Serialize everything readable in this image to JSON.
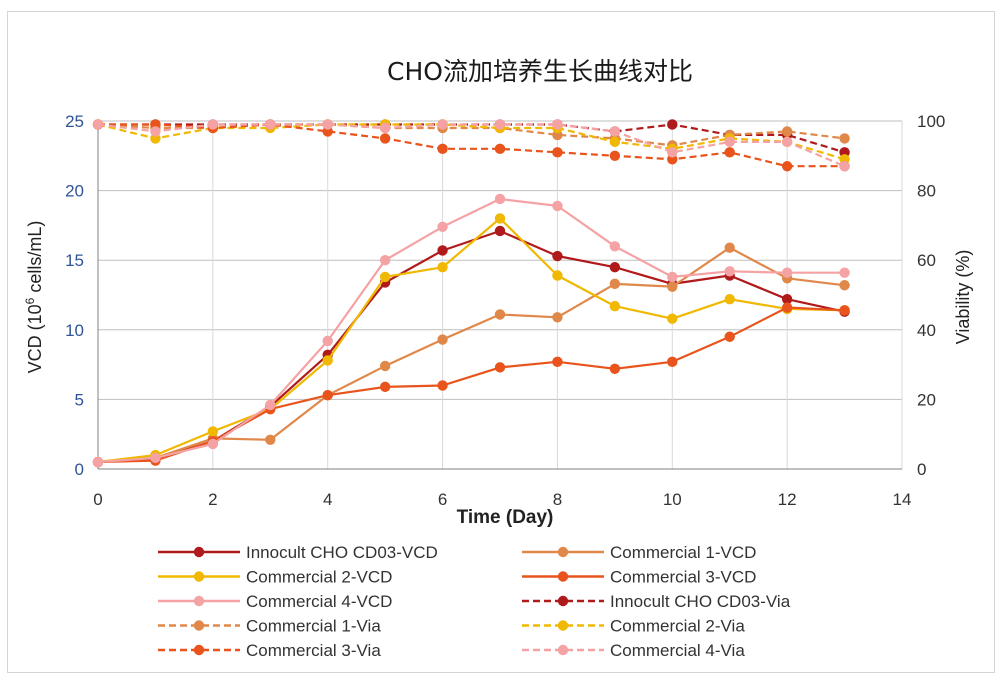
{
  "chart_data": {
    "type": "line",
    "title": "CHO流加培养生长曲线对比",
    "xlabel": "Time (Day)",
    "ylabel_left": "VCD (10⁶ cells/mL)",
    "ylabel_right": "Viability (%)",
    "xlim": [
      0,
      14
    ],
    "ylim_left": [
      0,
      25
    ],
    "ylim_right": [
      0,
      100
    ],
    "x_ticks": [
      "0",
      "2",
      "4",
      "6",
      "8",
      "10",
      "12",
      "14"
    ],
    "y_left_ticks": [
      "0",
      "5",
      "10",
      "15",
      "20",
      "25"
    ],
    "y_right_ticks": [
      "0",
      "20",
      "40",
      "60",
      "80",
      "100"
    ],
    "grid": true,
    "legend_position": "bottom",
    "x": [
      0,
      1,
      2,
      3,
      4,
      5,
      6,
      7,
      8,
      9,
      10,
      11,
      12,
      13
    ],
    "series": [
      {
        "name": "Innocult CHO CD03-VCD",
        "axis": "left",
        "style": "solid",
        "color": "#b01a1a",
        "values": [
          0.5,
          0.7,
          2.0,
          4.5,
          8.2,
          13.4,
          15.7,
          17.1,
          15.3,
          14.5,
          13.3,
          13.9,
          12.2,
          11.3
        ]
      },
      {
        "name": "Commercial 1-VCD",
        "axis": "left",
        "style": "solid",
        "color": "#e0884a",
        "values": [
          0.5,
          0.8,
          2.2,
          2.1,
          5.3,
          7.4,
          9.3,
          11.1,
          10.9,
          13.3,
          13.1,
          15.9,
          13.7,
          13.2
        ]
      },
      {
        "name": "Commercial 2-VCD",
        "axis": "left",
        "style": "solid",
        "color": "#f0b800",
        "values": [
          0.5,
          1.0,
          2.7,
          4.3,
          7.8,
          13.8,
          14.5,
          18.0,
          13.9,
          11.7,
          10.8,
          12.2,
          11.5,
          11.4
        ]
      },
      {
        "name": "Commercial 3-VCD",
        "axis": "left",
        "style": "solid",
        "color": "#e8541c",
        "values": [
          0.5,
          0.6,
          2.0,
          4.3,
          5.3,
          5.9,
          6.0,
          7.3,
          7.7,
          7.2,
          7.7,
          9.5,
          11.6,
          11.4
        ]
      },
      {
        "name": "Commercial 4-VCD",
        "axis": "left",
        "style": "solid",
        "color": "#f5a2a4",
        "values": [
          0.5,
          0.8,
          1.8,
          4.6,
          9.2,
          15.0,
          17.4,
          19.4,
          18.9,
          16.0,
          13.8,
          14.2,
          14.1,
          14.1
        ]
      },
      {
        "name": "Innocult CHO CD03-Via",
        "axis": "right",
        "style": "dashed",
        "color": "#b01a1a",
        "values": [
          99,
          99,
          99,
          99,
          99,
          99,
          99,
          99,
          99,
          97,
          99,
          96,
          96,
          91
        ]
      },
      {
        "name": "Commercial 1-Via",
        "axis": "right",
        "style": "dashed",
        "color": "#e0884a",
        "values": [
          99,
          98,
          98,
          99,
          99,
          98,
          98,
          98,
          96,
          95,
          93,
          96,
          97,
          95
        ]
      },
      {
        "name": "Commercial 2-Via",
        "axis": "right",
        "style": "dashed",
        "color": "#f0b800",
        "values": [
          99,
          95,
          98,
          98,
          99,
          99,
          99,
          98,
          98,
          94,
          92,
          95,
          94,
          89
        ]
      },
      {
        "name": "Commercial 3-Via",
        "axis": "right",
        "style": "dashed",
        "color": "#e8541c",
        "values": [
          99,
          99,
          98,
          99,
          97,
          95,
          92,
          92,
          91,
          90,
          89,
          91,
          87,
          87
        ]
      },
      {
        "name": "Commercial 4-Via",
        "axis": "right",
        "style": "dashed",
        "color": "#f5a2a4",
        "values": [
          99,
          97,
          99,
          99,
          99,
          98,
          99,
          99,
          99,
          97,
          91,
          94,
          94,
          87
        ]
      }
    ]
  }
}
